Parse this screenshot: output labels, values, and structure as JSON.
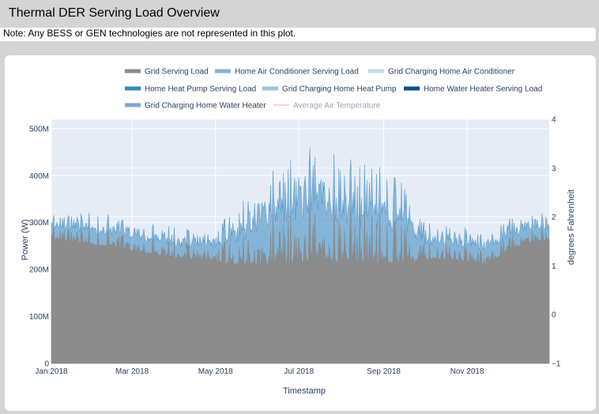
{
  "header": {
    "title": "Thermal DER Serving Load Overview",
    "note": "Note: Any BESS or GEN technologies are not represented in this plot."
  },
  "chart_data": {
    "type": "area",
    "stacked": true,
    "xlabel": "Timestamp",
    "ylabel": "Power (W)",
    "y2label": "degrees Fahrenheit",
    "x_range": [
      "2018-01-01",
      "2018-12-31"
    ],
    "x_ticks": [
      {
        "date": "2018-01-01",
        "label": "Jan 2018"
      },
      {
        "date": "2018-03-01",
        "label": "Mar 2018"
      },
      {
        "date": "2018-05-01",
        "label": "May 2018"
      },
      {
        "date": "2018-07-01",
        "label": "Jul 2018"
      },
      {
        "date": "2018-09-01",
        "label": "Sep 2018"
      },
      {
        "date": "2018-11-01",
        "label": "Nov 2018"
      }
    ],
    "ylim": [
      0,
      520000000
    ],
    "y_ticks": [
      {
        "value": 0,
        "label": "0"
      },
      {
        "value": 100000000,
        "label": "100M"
      },
      {
        "value": 200000000,
        "label": "200M"
      },
      {
        "value": 300000000,
        "label": "300M"
      },
      {
        "value": 400000000,
        "label": "400M"
      },
      {
        "value": 500000000,
        "label": "500M"
      }
    ],
    "y2lim": [
      -1,
      4
    ],
    "y2_ticks": [
      {
        "value": -1,
        "label": "−1"
      },
      {
        "value": 0,
        "label": "0"
      },
      {
        "value": 1,
        "label": "1"
      },
      {
        "value": 2,
        "label": "2"
      },
      {
        "value": 3,
        "label": "3"
      },
      {
        "value": 4,
        "label": "4"
      }
    ],
    "legend_position": "top",
    "series": [
      {
        "name": "Grid Serving Load",
        "color": "#8c8c8c"
      },
      {
        "name": "Home Air Conditioner Serving Load",
        "color": "#7fb6d8"
      },
      {
        "name": "Grid Charging Home Air Conditioner",
        "color": "#c5dcea"
      },
      {
        "name": "Home Heat Pump Serving Load",
        "color": "#3a88c0"
      },
      {
        "name": "Grid Charging Home Heat Pump",
        "color": "#9ec4dc"
      },
      {
        "name": "Home Water Heater Serving Load",
        "color": "#0e4e8e"
      },
      {
        "name": "Grid Charging Home Water Heater",
        "color": "#7ea9cf"
      },
      {
        "name": "Average Air Temperature",
        "color": "#f2a7a7",
        "legendonly": true
      }
    ],
    "daily_profile": [
      {
        "date": "2018-01-01",
        "base": 265000000,
        "peak": 318000000
      },
      {
        "date": "2018-01-15",
        "base": 258000000,
        "peak": 322000000
      },
      {
        "date": "2018-02-01",
        "base": 252000000,
        "peak": 322000000
      },
      {
        "date": "2018-02-15",
        "base": 250000000,
        "peak": 318000000
      },
      {
        "date": "2018-03-01",
        "base": 240000000,
        "peak": 308000000
      },
      {
        "date": "2018-03-15",
        "base": 232000000,
        "peak": 300000000
      },
      {
        "date": "2018-04-01",
        "base": 225000000,
        "peak": 292000000
      },
      {
        "date": "2018-04-15",
        "base": 222000000,
        "peak": 288000000
      },
      {
        "date": "2018-05-01",
        "base": 218000000,
        "peak": 290000000
      },
      {
        "date": "2018-05-15",
        "base": 210000000,
        "peak": 345000000
      },
      {
        "date": "2018-06-01",
        "base": 212000000,
        "peak": 400000000
      },
      {
        "date": "2018-06-15",
        "base": 210000000,
        "peak": 420000000
      },
      {
        "date": "2018-07-01",
        "base": 215000000,
        "peak": 465000000
      },
      {
        "date": "2018-07-15",
        "base": 218000000,
        "peak": 470000000
      },
      {
        "date": "2018-08-01",
        "base": 216000000,
        "peak": 445000000
      },
      {
        "date": "2018-08-15",
        "base": 214000000,
        "peak": 430000000
      },
      {
        "date": "2018-09-01",
        "base": 212000000,
        "peak": 425000000
      },
      {
        "date": "2018-09-15",
        "base": 215000000,
        "peak": 400000000
      },
      {
        "date": "2018-10-01",
        "base": 220000000,
        "peak": 310000000
      },
      {
        "date": "2018-10-15",
        "base": 222000000,
        "peak": 300000000
      },
      {
        "date": "2018-11-01",
        "base": 218000000,
        "peak": 295000000
      },
      {
        "date": "2018-11-15",
        "base": 210000000,
        "peak": 278000000
      },
      {
        "date": "2018-12-01",
        "base": 240000000,
        "peak": 318000000
      },
      {
        "date": "2018-12-15",
        "base": 258000000,
        "peak": 325000000
      },
      {
        "date": "2018-12-31",
        "base": 262000000,
        "peak": 325000000
      }
    ]
  }
}
